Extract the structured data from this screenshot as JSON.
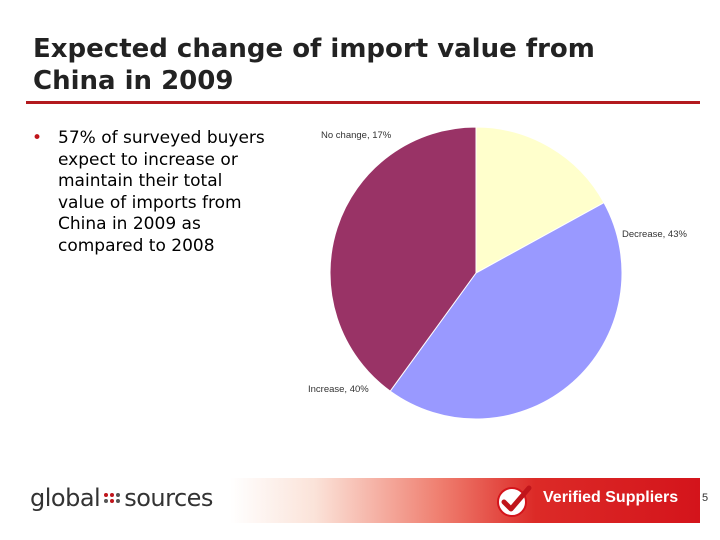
{
  "slide": {
    "title_line1": "Expected change of import value from",
    "title_line2": "China in 2009",
    "bullet": "57% of surveyed buyers expect to increase or maintain their total value of imports from China in 2009 as compared to 2008",
    "page_number": "5"
  },
  "footer": {
    "logo_left": "global",
    "logo_right": "sources",
    "verified_label": "Verified Suppliers"
  },
  "colors": {
    "title_rule": "#b3191e",
    "bullet": "#c0151b",
    "no_change": "#ffffcc",
    "decrease": "#9999ff",
    "increase": "#993366"
  },
  "chart_data": {
    "type": "pie",
    "slices": [
      {
        "name": "No change",
        "value": 17,
        "label": "No change, 17%",
        "color": "#ffffcc"
      },
      {
        "name": "Decrease",
        "value": 43,
        "label": "Decrease, 43%",
        "color": "#9999ff"
      },
      {
        "name": "Increase",
        "value": 40,
        "label": "Increase, 40%",
        "color": "#993366"
      }
    ],
    "start_angle_deg": 0,
    "direction": "clockwise"
  }
}
